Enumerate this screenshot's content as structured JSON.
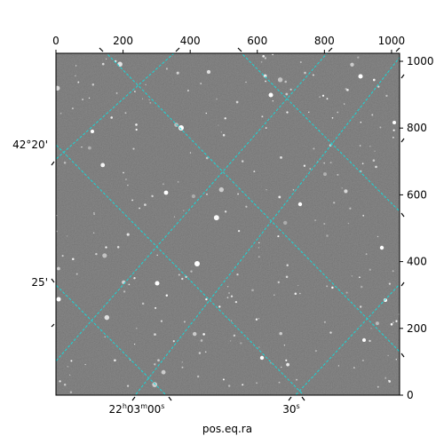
{
  "chart_data": {
    "type": "heatmap",
    "description_kind": "astronomical image with celestial coordinate grid overlay",
    "xlabel": "pos.eq.ra",
    "ylabel": "",
    "xlim": [
      0,
      1024
    ],
    "ylim": [
      0,
      1024
    ],
    "pixel_axis": {
      "top_ticks": [
        0,
        200,
        400,
        600,
        800,
        1000
      ],
      "right_ticks": [
        0,
        200,
        400,
        600,
        800,
        1000
      ]
    },
    "world_axis": {
      "ra_ticks": [
        {
          "label_h": "22",
          "label_m": "03",
          "label_s": "00",
          "hms": true
        },
        {
          "label": "30",
          "sec_only": true
        }
      ],
      "dec_ticks": [
        {
          "label": "42°20'"
        },
        {
          "label": "25'"
        }
      ]
    },
    "grid": true,
    "grid_color": "#18d8d8",
    "image_colormap": "gray"
  }
}
